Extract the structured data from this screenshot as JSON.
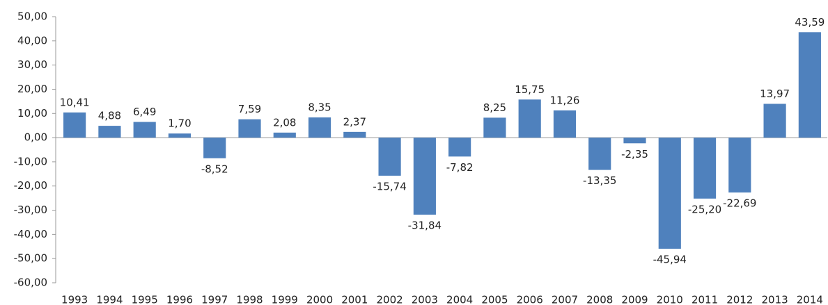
{
  "chart_data": {
    "type": "bar",
    "categories": [
      "1993",
      "1994",
      "1995",
      "1996",
      "1997",
      "1998",
      "1999",
      "2000",
      "2001",
      "2002",
      "2003",
      "2004",
      "2005",
      "2006",
      "2007",
      "2008",
      "2009",
      "2010",
      "2011",
      "2012",
      "2013",
      "2014"
    ],
    "values": [
      10.41,
      4.88,
      6.49,
      1.7,
      -8.52,
      7.59,
      2.08,
      8.35,
      2.37,
      -15.74,
      -31.84,
      -7.82,
      8.25,
      15.75,
      11.26,
      -13.35,
      -2.35,
      -45.94,
      -25.2,
      -22.69,
      13.97,
      43.59
    ],
    "value_labels": [
      "10,41",
      "4,88",
      "6,49",
      "1,70",
      "-8,52",
      "7,59",
      "2,08",
      "8,35",
      "2,37",
      "-15,74",
      "-31,84",
      "-7,82",
      "8,25",
      "15,75",
      "11,26",
      "-13,35",
      "-2,35",
      "-45,94",
      "-25,20",
      "-22,69",
      "13,97",
      "43,59"
    ],
    "color": "#4f81bd",
    "ylim": [
      -60,
      50
    ],
    "yticks": [
      {
        "value": -60,
        "label": "-60,00"
      },
      {
        "value": -50,
        "label": "-50,00"
      },
      {
        "value": -40,
        "label": "-40,00"
      },
      {
        "value": -30,
        "label": "-30,00"
      },
      {
        "value": -20,
        "label": "-20,00"
      },
      {
        "value": -10,
        "label": "-10,00"
      },
      {
        "value": 0,
        "label": "0,00"
      },
      {
        "value": 10,
        "label": "10,00"
      },
      {
        "value": 20,
        "label": "20,00"
      },
      {
        "value": 30,
        "label": "30,00"
      },
      {
        "value": 40,
        "label": "40,00"
      },
      {
        "value": 50,
        "label": "50,00"
      }
    ],
    "grid": false
  }
}
